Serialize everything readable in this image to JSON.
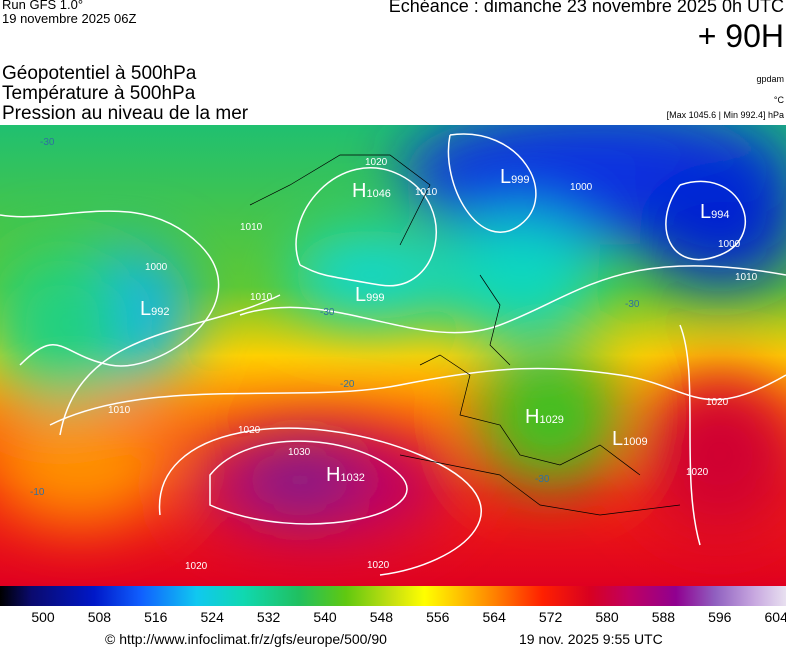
{
  "header": {
    "run": "Run GFS 1.0°",
    "date": "19 novembre 2025 06Z",
    "echeance": "Echéance : dimanche 23 novembre 2025 0h UTC",
    "lead": "+ 90H",
    "fields": [
      "Géopotentiel à 500hPa",
      "Température à 500hPa",
      "Pression au niveau de la mer"
    ],
    "unit_geo": "gpdam",
    "unit_temp": "°C",
    "pressure_range": "[Max 1045.6 | Min 992.4] hPa"
  },
  "centers": [
    {
      "letter": "H",
      "value": "1046"
    },
    {
      "letter": "L",
      "value": "999"
    },
    {
      "letter": "L",
      "value": "994"
    },
    {
      "letter": "L",
      "value": "992"
    },
    {
      "letter": "L",
      "value": "999"
    },
    {
      "letter": "H",
      "value": "1032"
    },
    {
      "letter": "H",
      "value": "1029"
    },
    {
      "letter": "L",
      "value": "1009"
    }
  ],
  "isobars": [
    "1020",
    "1010",
    "1000",
    "1000",
    "1010",
    "1010",
    "1000",
    "1010",
    "1020",
    "1030",
    "1020",
    "1020",
    "1020",
    "1020",
    "1010"
  ],
  "temps": [
    "-30",
    "-20",
    "-10",
    "-30",
    "-30",
    "-30"
  ],
  "colorbar": [
    "500",
    "508",
    "516",
    "524",
    "532",
    "540",
    "548",
    "556",
    "564",
    "572",
    "580",
    "588",
    "596",
    "604"
  ],
  "footer": {
    "url": "© http://www.infoclimat.fr/z/gfs/europe/500/90",
    "stamp": "19 nov. 2025  9:55 UTC"
  }
}
